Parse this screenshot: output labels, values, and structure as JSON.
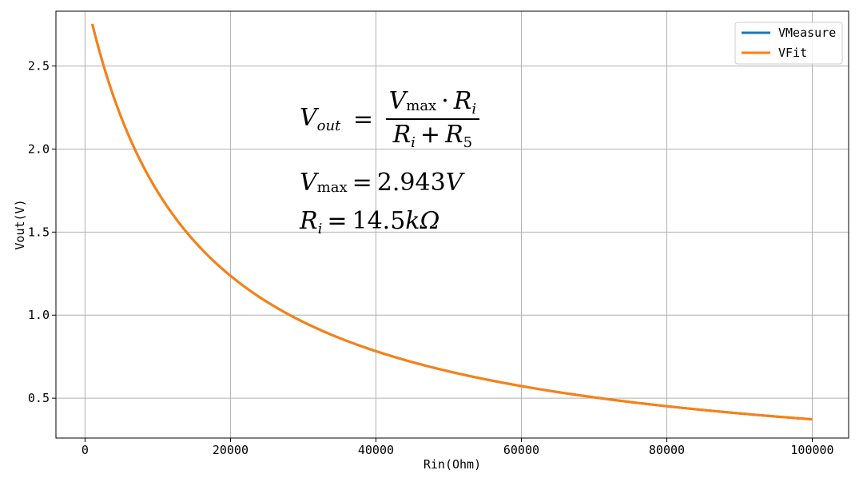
{
  "chart_data": {
    "type": "line",
    "title": "",
    "xlabel": "Rin(Ohm)",
    "ylabel": "Vout(V)",
    "xlim": [
      -4000,
      105000
    ],
    "ylim": [
      0.26,
      2.83
    ],
    "x_ticks": [
      0,
      20000,
      40000,
      60000,
      80000,
      100000
    ],
    "x_tick_labels": [
      "0",
      "20000",
      "40000",
      "60000",
      "80000",
      "100000"
    ],
    "y_ticks": [
      0.5,
      1.0,
      1.5,
      2.0,
      2.5
    ],
    "y_tick_labels": [
      "0.5",
      "1.0",
      "1.5",
      "2.0",
      "2.5"
    ],
    "grid": true,
    "legend_position": "top-right",
    "model": {
      "vmax": 2.943,
      "ri": 14500
    },
    "series": [
      {
        "name": "VMeasure",
        "color": "#1f77b4",
        "x": [
          1000,
          2000,
          4000,
          6000,
          8000,
          10000,
          12000,
          15000,
          20000,
          25000,
          30000,
          40000,
          50000,
          60000,
          70000,
          80000,
          90000,
          100000
        ],
        "y": [
          2.753,
          2.586,
          2.306,
          2.082,
          1.897,
          1.742,
          1.61,
          1.447,
          1.234,
          1.076,
          0.954,
          0.777,
          0.656,
          0.568,
          0.5,
          0.447,
          0.404,
          0.369
        ]
      },
      {
        "name": "VFit",
        "color": "#ff7f0e",
        "x": [
          1000,
          2000,
          4000,
          6000,
          8000,
          10000,
          12000,
          15000,
          20000,
          25000,
          30000,
          40000,
          50000,
          60000,
          70000,
          80000,
          90000,
          100000
        ],
        "y": [
          2.753,
          2.586,
          2.306,
          2.082,
          1.897,
          1.742,
          1.61,
          1.447,
          1.234,
          1.076,
          0.954,
          0.777,
          0.656,
          0.568,
          0.5,
          0.447,
          0.404,
          0.369
        ]
      }
    ]
  },
  "annotation": {
    "lhs": "V",
    "lhs_sub": "out",
    "equals": "=",
    "num_v": "V",
    "num_v_sub": "max",
    "num_dot": "·",
    "num_r": "R",
    "num_r_sub": "i",
    "den_r1": "R",
    "den_r1_sub": "i",
    "den_plus": "+",
    "den_r2": "R",
    "den_r2_sub": "5",
    "vmax_v": "V",
    "vmax_sub": "max",
    "vmax_eq": "=",
    "vmax_value": "2.943",
    "vmax_unit": "V",
    "ri_r": "R",
    "ri_sub": "i",
    "ri_eq": "=",
    "ri_value": "14.5",
    "ri_unit": "kΩ"
  }
}
